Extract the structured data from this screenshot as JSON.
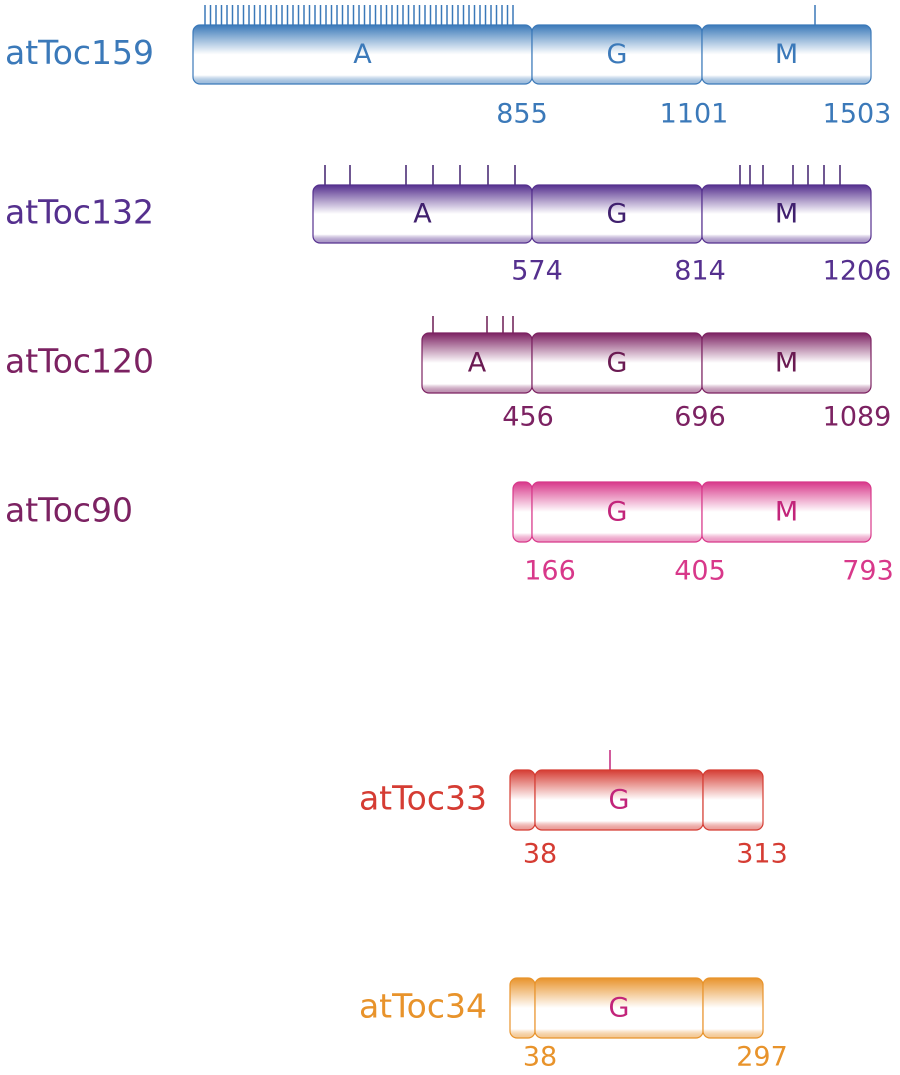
{
  "proteins": [
    {
      "name": "atToc159",
      "domains": [
        "A",
        "G",
        "M"
      ],
      "positions": [
        855,
        1101,
        1503
      ]
    },
    {
      "name": "atToc132",
      "domains": [
        "A",
        "G",
        "M"
      ],
      "positions": [
        574,
        814,
        1206
      ]
    },
    {
      "name": "atToc120",
      "domains": [
        "A",
        "G",
        "M"
      ],
      "positions": [
        456,
        696,
        1089
      ]
    },
    {
      "name": "atToc90",
      "domains": [
        "G",
        "M"
      ],
      "positions": [
        166,
        405,
        793
      ]
    },
    {
      "name": "atToc33",
      "domains": [
        "G"
      ],
      "positions": [
        38,
        313
      ]
    },
    {
      "name": "atToc34",
      "domains": [
        "G"
      ],
      "positions": [
        38,
        297
      ]
    }
  ]
}
